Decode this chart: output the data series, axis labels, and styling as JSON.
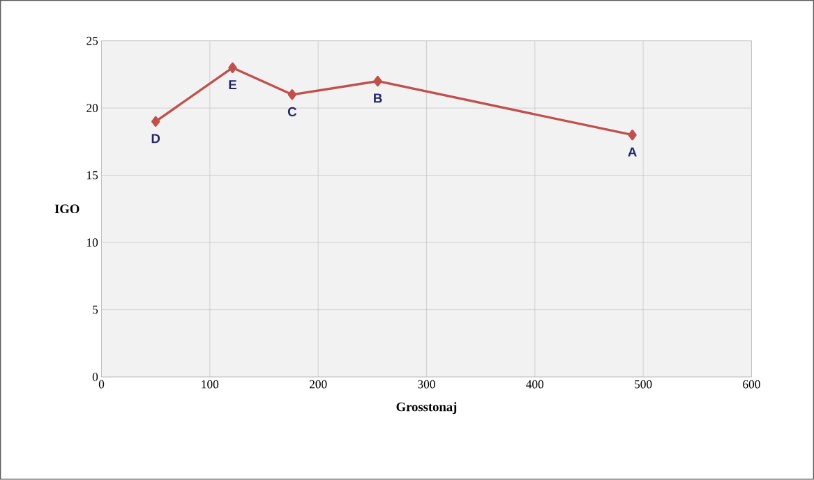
{
  "chart_data": {
    "type": "line",
    "xlabel": "Grosstonaj",
    "ylabel": "IGO",
    "x": [
      50,
      121,
      176,
      255,
      490
    ],
    "series": [
      {
        "color": "#c0504d",
        "values": [
          19,
          23,
          21,
          22,
          18
        ]
      }
    ],
    "xlim": [
      0,
      600
    ],
    "xticks": [
      0,
      100,
      200,
      300,
      400,
      500,
      600
    ],
    "ylim": [
      0,
      25
    ],
    "yticks": [
      0,
      5,
      10,
      15,
      20,
      25
    ],
    "grid": true,
    "marker": "diamond",
    "line_style": "solid",
    "annotations": [
      {
        "text": "D",
        "x": 50,
        "y": 19
      },
      {
        "text": "E",
        "x": 121,
        "y": 23
      },
      {
        "text": "C",
        "x": 176,
        "y": 21
      },
      {
        "text": "B",
        "x": 255,
        "y": 22
      },
      {
        "text": "A",
        "x": 490,
        "y": 18
      }
    ]
  }
}
